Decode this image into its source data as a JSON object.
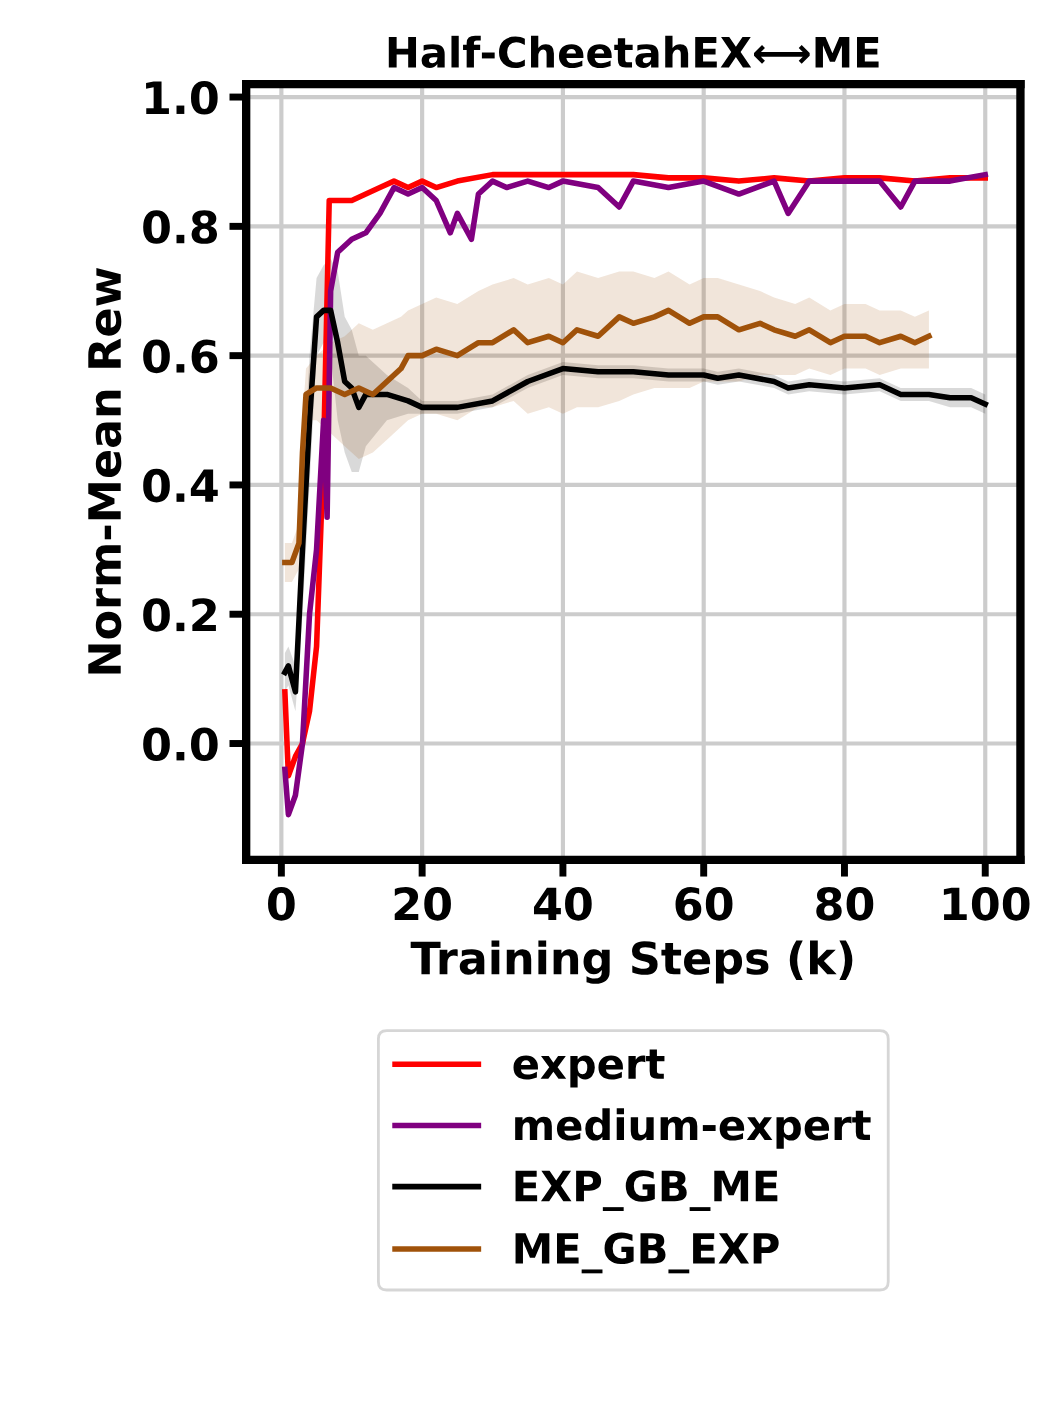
{
  "chart_data": {
    "type": "line",
    "title": "Half-CheetahEX⟷ME",
    "xlabel": "Training Steps (k)",
    "ylabel": "Norm-Mean Rew",
    "xlim": [
      -5,
      105
    ],
    "xticks": [
      0,
      20,
      40,
      60,
      80,
      100
    ],
    "ylim": [
      -0.18,
      1.02
    ],
    "yticks": [
      {
        "value": 0,
        "label": "0.0"
      },
      0.2,
      0.4,
      0.6,
      0.8,
      {
        "value": 1,
        "label": "1.0"
      }
    ],
    "grid": true,
    "legend": "bottom",
    "line_style": "solid",
    "marker": "none",
    "series": [
      {
        "name": "expert",
        "color": "#ff0000",
        "x": [
          0.5,
          1,
          2,
          3,
          4,
          5,
          6,
          6.8,
          8,
          10,
          12,
          14,
          16,
          18,
          20,
          22,
          25,
          30,
          35,
          40,
          45,
          50,
          55,
          60,
          65,
          70,
          75,
          80,
          85,
          90,
          95,
          100
        ],
        "values": [
          0.08,
          -0.05,
          -0.02,
          0.0,
          0.05,
          0.15,
          0.45,
          0.84,
          0.84,
          0.84,
          0.85,
          0.86,
          0.87,
          0.86,
          0.87,
          0.86,
          0.87,
          0.88,
          0.88,
          0.88,
          0.88,
          0.88,
          0.875,
          0.875,
          0.87,
          0.875,
          0.87,
          0.875,
          0.875,
          0.87,
          0.875,
          0.875
        ]
      },
      {
        "name": "medium-expert",
        "color": "#800080",
        "x": [
          0.5,
          1,
          2,
          3,
          4,
          5,
          6,
          6.5,
          7,
          8,
          10,
          12,
          14,
          16,
          18,
          20,
          22,
          24,
          25,
          27,
          28,
          30,
          32,
          35,
          38,
          40,
          45,
          48,
          50,
          55,
          60,
          65,
          70,
          72,
          75,
          80,
          85,
          88,
          90,
          95,
          100
        ],
        "values": [
          -0.04,
          -0.11,
          -0.08,
          0.0,
          0.2,
          0.3,
          0.5,
          0.35,
          0.7,
          0.76,
          0.78,
          0.79,
          0.82,
          0.86,
          0.85,
          0.86,
          0.84,
          0.79,
          0.82,
          0.78,
          0.85,
          0.87,
          0.86,
          0.87,
          0.86,
          0.87,
          0.86,
          0.83,
          0.87,
          0.86,
          0.87,
          0.85,
          0.87,
          0.82,
          0.87,
          0.87,
          0.87,
          0.83,
          0.87,
          0.87,
          0.88
        ]
      },
      {
        "name": "EXP_GB_ME",
        "color": "#000000",
        "x": [
          0.5,
          1,
          2,
          3,
          4,
          5,
          6,
          7,
          8,
          9,
          10,
          11,
          12,
          15,
          18,
          20,
          25,
          30,
          35,
          40,
          45,
          50,
          55,
          60,
          62,
          65,
          70,
          72,
          75,
          80,
          85,
          88,
          92,
          95,
          98,
          100
        ],
        "values": [
          0.11,
          0.12,
          0.08,
          0.3,
          0.5,
          0.66,
          0.67,
          0.67,
          0.62,
          0.56,
          0.55,
          0.52,
          0.54,
          0.54,
          0.53,
          0.52,
          0.52,
          0.53,
          0.56,
          0.58,
          0.575,
          0.575,
          0.57,
          0.57,
          0.565,
          0.57,
          0.56,
          0.55,
          0.555,
          0.55,
          0.555,
          0.54,
          0.54,
          0.535,
          0.535,
          0.525
        ],
        "lower": [
          0.08,
          0.09,
          0.05,
          0.2,
          0.4,
          0.6,
          0.62,
          0.6,
          0.5,
          0.45,
          0.42,
          0.42,
          0.46,
          0.5,
          0.51,
          0.51,
          0.51,
          0.52,
          0.55,
          0.57,
          0.565,
          0.565,
          0.56,
          0.56,
          0.555,
          0.56,
          0.55,
          0.54,
          0.545,
          0.54,
          0.545,
          0.53,
          0.53,
          0.52,
          0.52,
          0.51
        ],
        "upper": [
          0.14,
          0.15,
          0.12,
          0.4,
          0.6,
          0.72,
          0.74,
          0.75,
          0.73,
          0.66,
          0.64,
          0.6,
          0.6,
          0.57,
          0.55,
          0.53,
          0.53,
          0.54,
          0.57,
          0.59,
          0.585,
          0.585,
          0.58,
          0.58,
          0.575,
          0.58,
          0.57,
          0.56,
          0.565,
          0.56,
          0.565,
          0.55,
          0.55,
          0.55,
          0.55,
          0.54
        ]
      },
      {
        "name": "ME_GB_EXP",
        "color": "#a0520a",
        "x": [
          0.5,
          1.5,
          2.5,
          3,
          3.5,
          5,
          7,
          9,
          11,
          13,
          15,
          17,
          18,
          20,
          22,
          25,
          28,
          30,
          33,
          35,
          38,
          40,
          42,
          45,
          48,
          50,
          53,
          55,
          58,
          60,
          62,
          65,
          68,
          70,
          73,
          75,
          78,
          80,
          83,
          85,
          88,
          90,
          92
        ],
        "values": [
          0.28,
          0.28,
          0.31,
          0.45,
          0.54,
          0.55,
          0.55,
          0.54,
          0.55,
          0.54,
          0.56,
          0.58,
          0.6,
          0.6,
          0.61,
          0.6,
          0.62,
          0.62,
          0.64,
          0.62,
          0.63,
          0.62,
          0.64,
          0.63,
          0.66,
          0.65,
          0.66,
          0.67,
          0.65,
          0.66,
          0.66,
          0.64,
          0.65,
          0.64,
          0.63,
          0.64,
          0.62,
          0.63,
          0.63,
          0.62,
          0.63,
          0.62,
          0.63
        ],
        "lower": [
          0.25,
          0.25,
          0.27,
          0.4,
          0.5,
          0.5,
          0.48,
          0.46,
          0.44,
          0.45,
          0.47,
          0.49,
          0.5,
          0.51,
          0.51,
          0.5,
          0.52,
          0.52,
          0.53,
          0.51,
          0.52,
          0.51,
          0.52,
          0.52,
          0.53,
          0.54,
          0.55,
          0.55,
          0.55,
          0.56,
          0.56,
          0.56,
          0.57,
          0.57,
          0.57,
          0.58,
          0.57,
          0.58,
          0.58,
          0.57,
          0.58,
          0.58,
          0.58
        ],
        "upper": [
          0.31,
          0.31,
          0.34,
          0.5,
          0.58,
          0.6,
          0.62,
          0.63,
          0.65,
          0.64,
          0.65,
          0.66,
          0.67,
          0.68,
          0.69,
          0.68,
          0.7,
          0.71,
          0.72,
          0.71,
          0.72,
          0.71,
          0.73,
          0.72,
          0.73,
          0.73,
          0.72,
          0.73,
          0.71,
          0.72,
          0.72,
          0.71,
          0.7,
          0.69,
          0.68,
          0.69,
          0.67,
          0.68,
          0.68,
          0.67,
          0.67,
          0.66,
          0.67
        ]
      }
    ]
  }
}
